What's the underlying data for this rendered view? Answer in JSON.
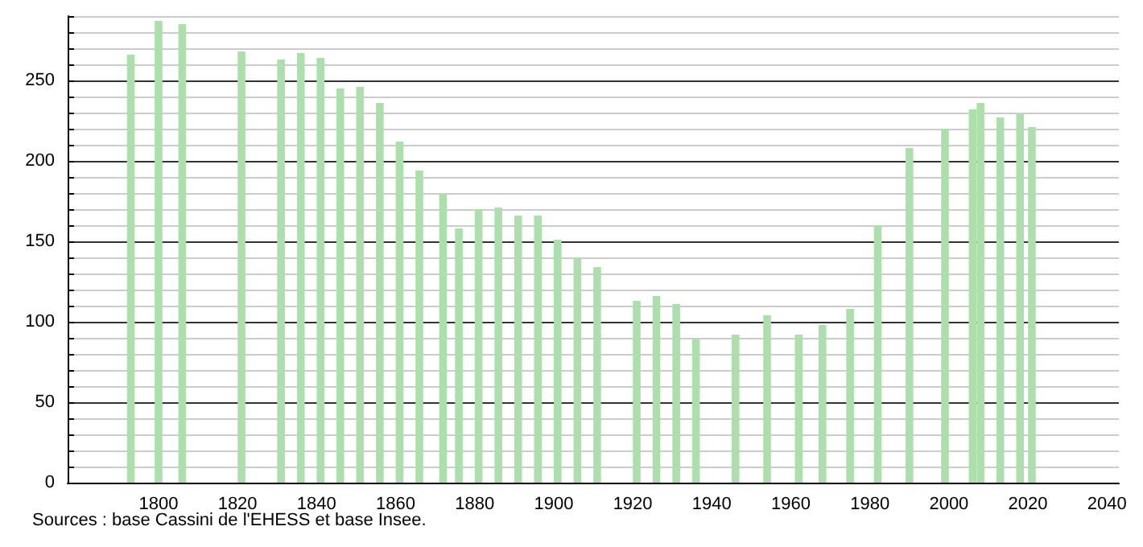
{
  "chart_data": {
    "type": "bar",
    "x": [
      1793,
      1800,
      1806,
      1821,
      1831,
      1836,
      1841,
      1846,
      1851,
      1856,
      1861,
      1866,
      1872,
      1876,
      1881,
      1886,
      1891,
      1896,
      1901,
      1906,
      1911,
      1921,
      1926,
      1931,
      1936,
      1946,
      1954,
      1962,
      1968,
      1975,
      1982,
      1990,
      1999,
      2006,
      2008,
      2013,
      2018,
      2021
    ],
    "values": [
      266,
      287,
      285,
      268,
      263,
      267,
      264,
      245,
      246,
      236,
      212,
      194,
      179,
      158,
      170,
      171,
      166,
      166,
      151,
      140,
      134,
      113,
      116,
      111,
      89,
      92,
      104,
      92,
      98,
      108,
      160,
      208,
      220,
      232,
      236,
      227,
      229,
      221
    ],
    "color": "#addfad",
    "xlim": [
      1777,
      2043
    ],
    "xticks": [
      1800,
      1820,
      1840,
      1860,
      1880,
      1900,
      1920,
      1940,
      1960,
      1980,
      2000,
      2020,
      2040
    ],
    "ylim": [
      0,
      290
    ],
    "yticks": [
      0,
      {
        "value": 10,
        "label": null
      },
      {
        "value": 20,
        "label": null
      },
      {
        "value": 30,
        "label": null
      },
      {
        "value": 40,
        "label": null
      },
      50,
      {
        "value": 60,
        "label": null
      },
      {
        "value": 70,
        "label": null
      },
      {
        "value": 80,
        "label": null
      },
      {
        "value": 90,
        "label": null
      },
      100,
      {
        "value": 110,
        "label": null
      },
      {
        "value": 120,
        "label": null
      },
      {
        "value": 130,
        "label": null
      },
      {
        "value": 140,
        "label": null
      },
      150,
      {
        "value": 160,
        "label": null
      },
      {
        "value": 170,
        "label": null
      },
      {
        "value": 180,
        "label": null
      },
      {
        "value": 190,
        "label": null
      },
      200,
      {
        "value": 210,
        "label": null
      },
      {
        "value": 220,
        "label": null
      },
      {
        "value": 230,
        "label": null
      },
      {
        "value": 240,
        "label": null
      },
      250,
      {
        "value": 260,
        "label": null
      },
      {
        "value": 270,
        "label": null
      },
      {
        "value": 280,
        "label": null
      },
      {
        "value": 290,
        "label": null
      }
    ],
    "grid": "y",
    "annotations": [
      "Sources : base Cassini de l'EHESS et base Insee."
    ]
  }
}
